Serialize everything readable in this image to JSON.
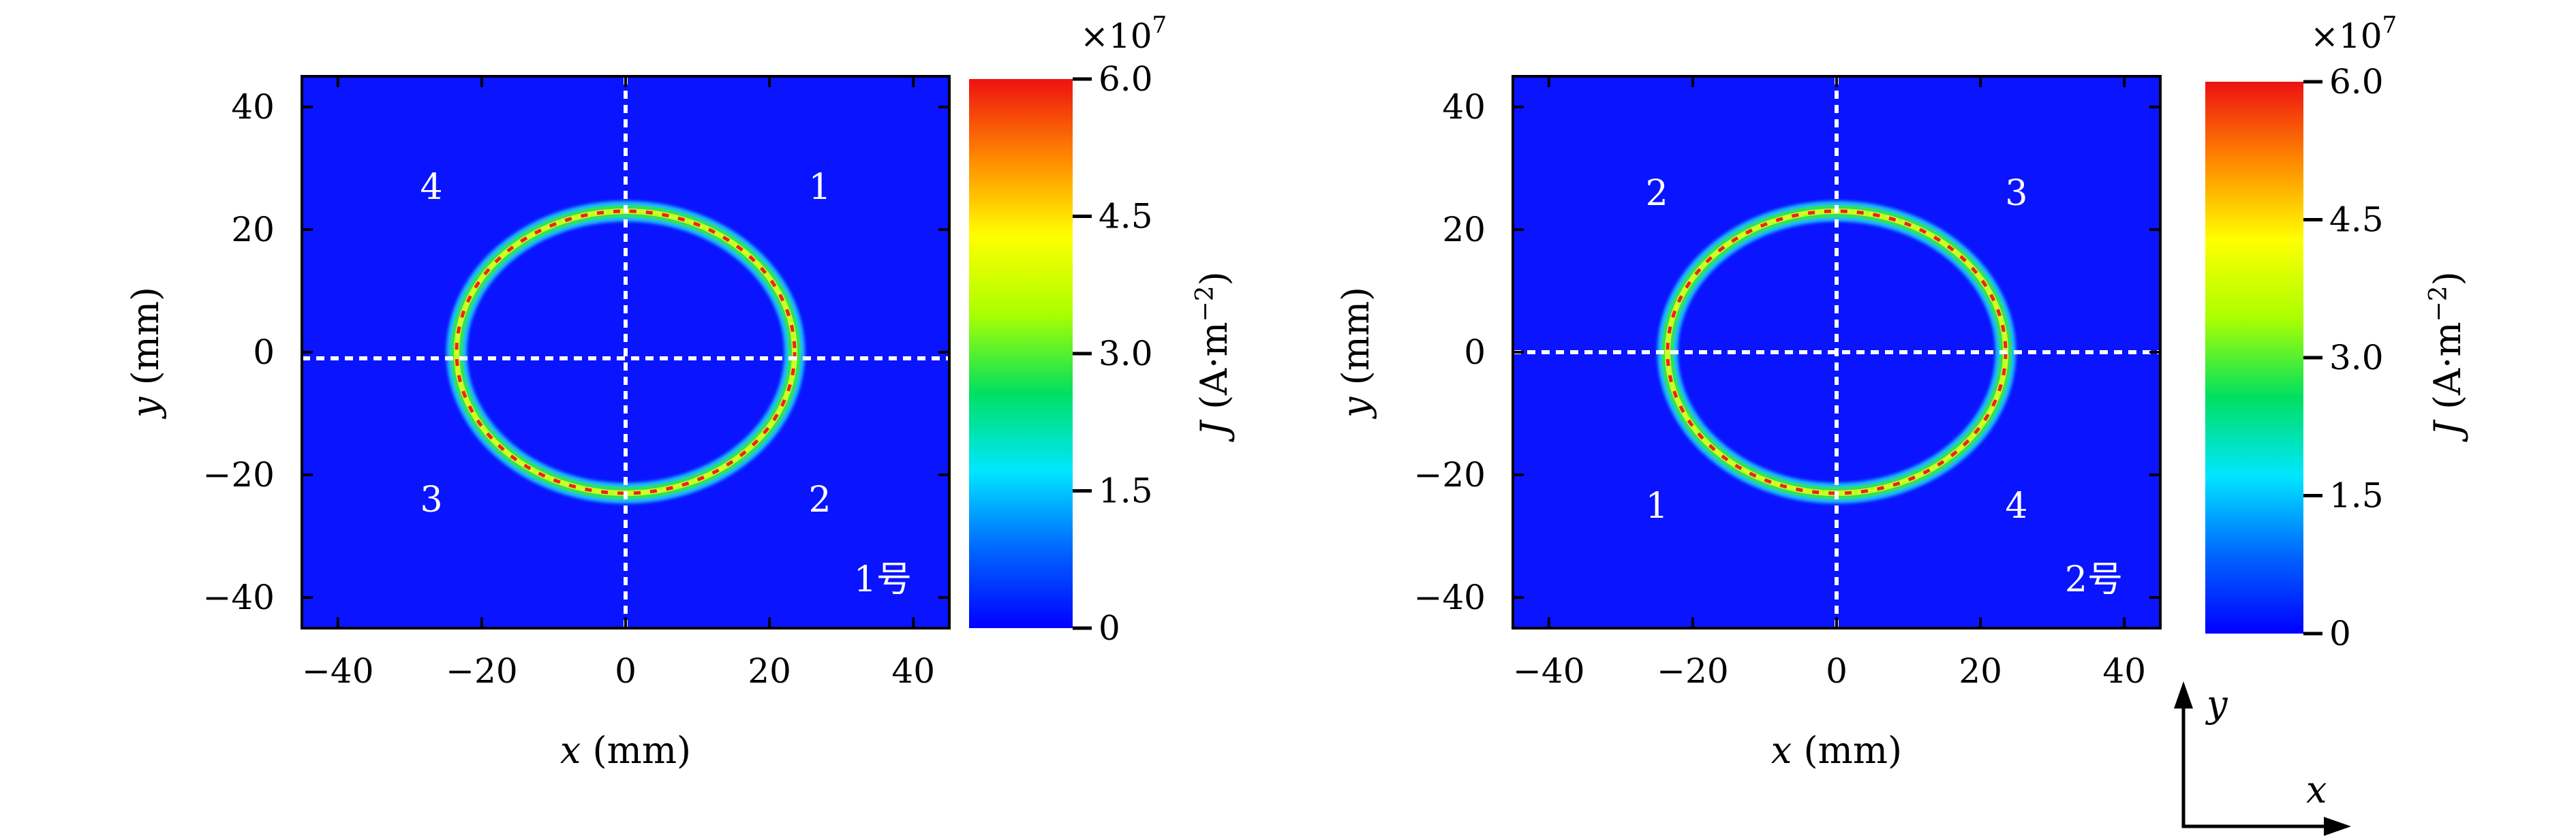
{
  "chart_data": [
    {
      "type": "heatmap",
      "panel_tag": "1号",
      "xlabel_var": "x",
      "xlabel_unit": " (mm)",
      "ylabel_var": "y",
      "ylabel_unit": " (mm)",
      "xlim": [
        -45,
        45
      ],
      "ylim": [
        -45,
        45
      ],
      "xticks": [
        -40,
        -20,
        0,
        20,
        40
      ],
      "yticks": [
        -40,
        -20,
        0,
        20,
        40
      ],
      "xtick_labels": [
        "−40",
        "−20",
        "0",
        "20",
        "40"
      ],
      "ytick_labels": [
        "−40",
        "−20",
        "0",
        "20",
        "40"
      ],
      "background_color": "#0a14ff",
      "ring": {
        "center": [
          0,
          0
        ],
        "radius_x": 23.5,
        "radius_y": 23
      },
      "crosshair": {
        "x": 0,
        "y": -1
      },
      "quadrant_labels": [
        {
          "text": "4",
          "x": -27,
          "y": 27
        },
        {
          "text": "1",
          "x": 27,
          "y": 27
        },
        {
          "text": "3",
          "x": -27,
          "y": -24
        },
        {
          "text": "2",
          "x": 27,
          "y": -24
        }
      ],
      "colorbar": {
        "label_var": "J",
        "label_unit": " (A·m",
        "label_exp": "−2",
        "label_close": ")",
        "multiplier": "×10",
        "multiplier_exp": "7",
        "range": [
          0,
          6.0
        ],
        "ticks": [
          0,
          1.5,
          3.0,
          4.5,
          6.0
        ],
        "tick_labels": [
          "0",
          "1.5",
          "3.0",
          "4.5",
          "6.0"
        ],
        "colormap": [
          "#0000ff",
          "#0066ff",
          "#00e6ff",
          "#00e060",
          "#aaff00",
          "#ffff00",
          "#ff8800",
          "#ee1111"
        ]
      }
    },
    {
      "type": "heatmap",
      "panel_tag": "2号",
      "xlabel_var": "x",
      "xlabel_unit": " (mm)",
      "ylabel_var": "y",
      "ylabel_unit": " (mm)",
      "xlim": [
        -45,
        45
      ],
      "ylim": [
        -45,
        45
      ],
      "xticks": [
        -40,
        -20,
        0,
        20,
        40
      ],
      "yticks": [
        -40,
        -20,
        0,
        20,
        40
      ],
      "xtick_labels": [
        "−40",
        "−20",
        "0",
        "20",
        "40"
      ],
      "ytick_labels": [
        "−40",
        "−20",
        "0",
        "20",
        "40"
      ],
      "background_color": "#0a14ff",
      "ring": {
        "center": [
          0,
          0
        ],
        "radius_x": 23.5,
        "radius_y": 23
      },
      "crosshair": {
        "x": 0,
        "y": 0
      },
      "quadrant_labels": [
        {
          "text": "2",
          "x": -25,
          "y": 26
        },
        {
          "text": "3",
          "x": 25,
          "y": 26
        },
        {
          "text": "1",
          "x": -25,
          "y": -25
        },
        {
          "text": "4",
          "x": 25,
          "y": -25
        }
      ],
      "colorbar": {
        "label_var": "J",
        "label_unit": " (A·m",
        "label_exp": "−2",
        "label_close": ")",
        "multiplier": "×10",
        "multiplier_exp": "7",
        "range": [
          0,
          6.0
        ],
        "ticks": [
          0,
          1.5,
          3.0,
          4.5,
          6.0
        ],
        "tick_labels": [
          "0",
          "1.5",
          "3.0",
          "4.5",
          "6.0"
        ],
        "colormap": [
          "#0000ff",
          "#0066ff",
          "#00e6ff",
          "#00e060",
          "#aaff00",
          "#ffff00",
          "#ff8800",
          "#ee1111"
        ]
      }
    }
  ],
  "coordinate_key": {
    "y_label": "y",
    "x_label": "x"
  }
}
